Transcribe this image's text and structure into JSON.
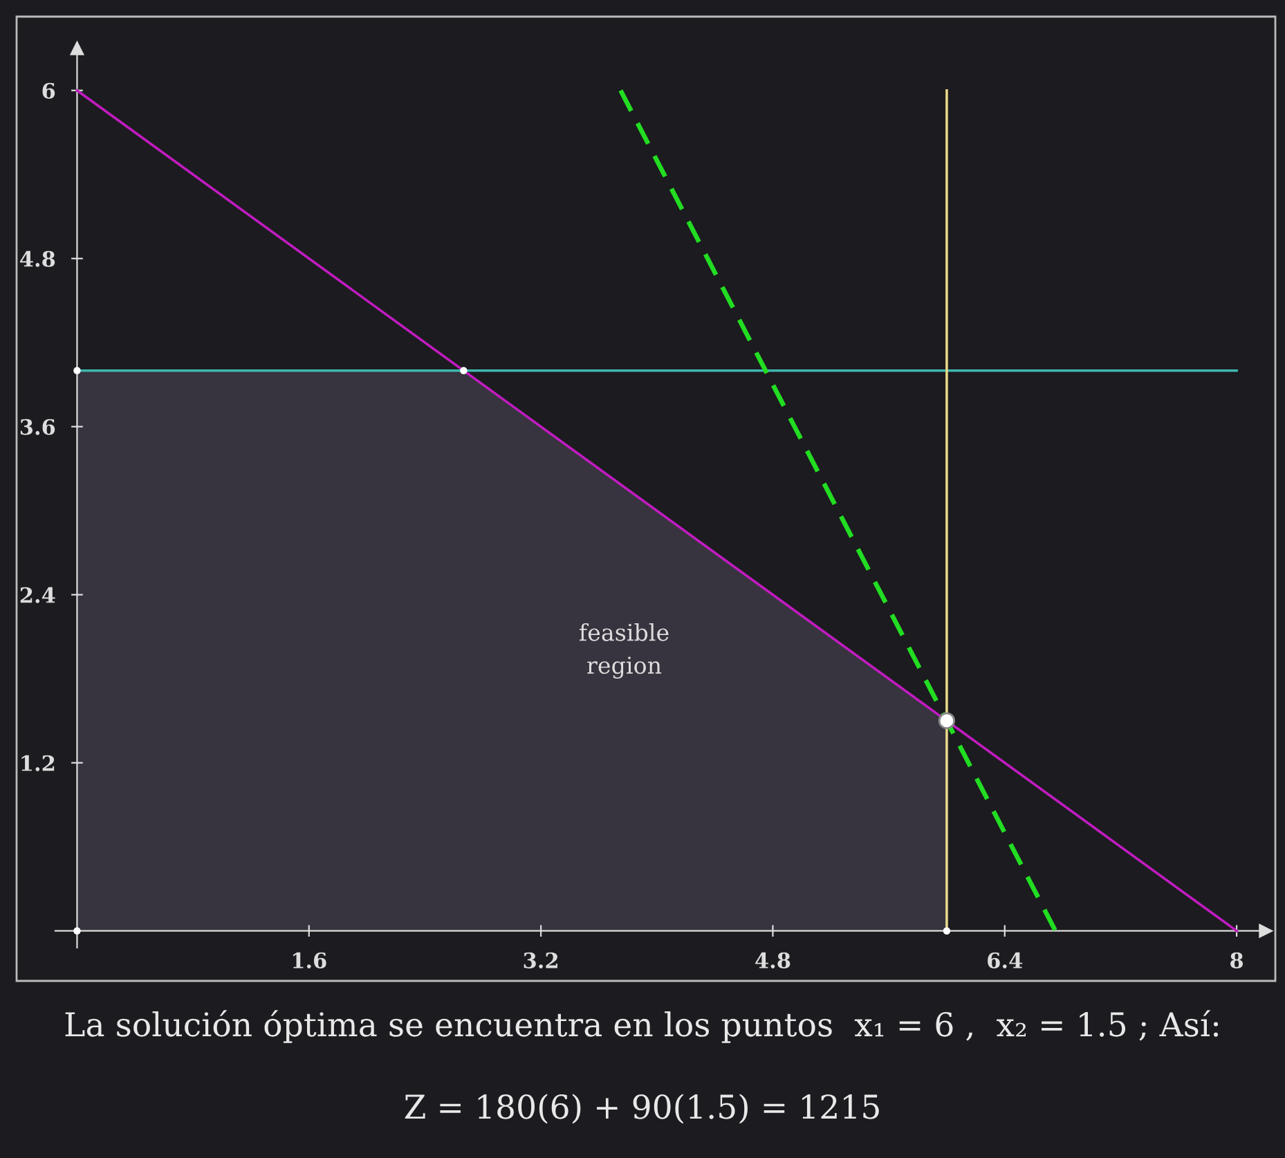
{
  "chart_data": {
    "type": "line",
    "xlim": [
      -0.15,
      8.2
    ],
    "ylim": [
      -0.12,
      6.3
    ],
    "xticks": [
      1.6,
      3.2,
      4.8,
      6.4,
      8
    ],
    "yticks": [
      1.2,
      2.4,
      3.6,
      4.8,
      6
    ],
    "grid": false,
    "legend": false,
    "series": [
      {
        "type": "area",
        "color": "#38343f",
        "x": [
          0,
          2.667,
          6
        ],
        "values": [
          4,
          4,
          1.5
        ]
      },
      {
        "color": "#c01cc0",
        "x": [
          0,
          8
        ],
        "values": [
          6,
          0
        ]
      },
      {
        "color": "#3fb8b0",
        "x": [
          0,
          8
        ],
        "values": [
          4,
          4
        ]
      },
      {
        "color": "#e8d88a",
        "x": [
          6,
          6
        ],
        "values": [
          0,
          6
        ]
      },
      {
        "color": "#22dd22",
        "line_style": "dashed",
        "x": [
          3.75,
          6.75
        ],
        "values": [
          6,
          0
        ]
      },
      {
        "type": "scatter",
        "color": "#ffffff",
        "marker": "circle",
        "x": [
          0,
          2.667,
          0,
          6
        ],
        "values": [
          4,
          4,
          0,
          0
        ]
      },
      {
        "type": "scatter",
        "color": "#ffffff",
        "marker": "circle",
        "x": [
          6
        ],
        "values": [
          1.5
        ]
      }
    ],
    "annotations": [
      "feasible\nregion",
      "La solución óptima se encuentra en los puntos  x₁ = 6 ,  x₂ = 1.5 ; Así:",
      "Z = 180(6) + 90(1.5) = 1215"
    ]
  }
}
